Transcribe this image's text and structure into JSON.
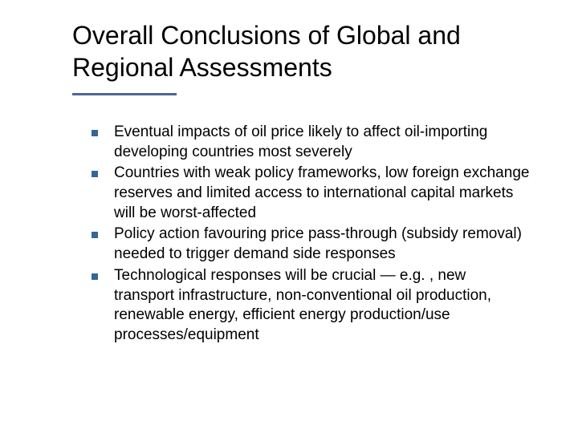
{
  "colors": {
    "accent": "#336699",
    "underline": "#4d6699",
    "text": "#000000",
    "background": "#ffffff"
  },
  "title": "Overall Conclusions of Global and Regional Assessments",
  "bullets": [
    "Eventual impacts of oil price likely to affect oil-importing developing countries most severely",
    "Countries with weak policy frameworks, low foreign exchange reserves and limited access to international capital markets will be worst-affected",
    "Policy action favouring price pass-through (subsidy removal) needed to trigger demand side responses",
    "Technological responses will be crucial — e.g. , new transport infrastructure, non-conventional oil production, renewable energy, efficient energy production/use processes/equipment"
  ]
}
